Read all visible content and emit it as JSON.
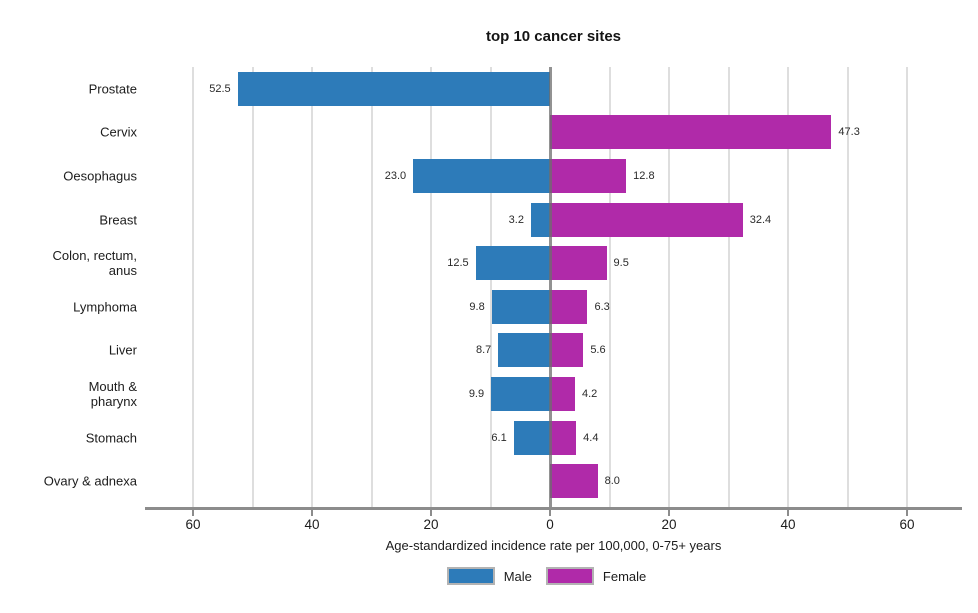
{
  "chart_data": {
    "type": "bar",
    "orientation": "diverging-horizontal",
    "title": "top 10 cancer sites",
    "xlabel": "Age-standardized incidence rate per 100,000, 0-75+ years",
    "categories": [
      "Prostate",
      "Cervix",
      "Oesophagus",
      "Breast",
      "Colon, rectum,\nanus",
      "Lymphoma",
      "Liver",
      "Mouth &\npharynx",
      "Stomach",
      "Ovary & adnexa"
    ],
    "series": [
      {
        "name": "Male",
        "side": "left",
        "color": "#2d7bb9",
        "values": [
          52.5,
          null,
          23.0,
          3.2,
          12.5,
          9.8,
          8.7,
          9.9,
          6.1,
          null
        ],
        "labels": [
          "52.5",
          null,
          "23.0",
          "3.2",
          "12.5",
          "9.8",
          "8.7",
          "9.9",
          "6.1",
          null
        ]
      },
      {
        "name": "Female",
        "side": "right",
        "color": "#b02aa9",
        "values": [
          null,
          47.3,
          12.8,
          32.4,
          9.5,
          6.3,
          5.6,
          4.2,
          4.4,
          8.0
        ],
        "labels": [
          null,
          "47.3",
          "12.8",
          "32.4",
          "9.5",
          "6.3",
          "5.6",
          "4.2",
          "4.4",
          "8.0"
        ]
      }
    ],
    "xlim": [
      -68,
      68
    ],
    "xticks": [
      -60,
      -40,
      -20,
      0,
      20,
      40,
      60
    ],
    "tick_labels": [
      "60",
      "40",
      "20",
      "0",
      "20",
      "40",
      "60"
    ],
    "gridline_step": 10,
    "grid": true,
    "legend_position": "bottom",
    "colors": {
      "male": "#2d7bb9",
      "female": "#b02aa9",
      "gridline": "#dedede",
      "zero_line": "#6e6e6e",
      "axis_line": "#8c8c8c",
      "text": "#1c1c1c",
      "background": "#ffffff"
    }
  }
}
